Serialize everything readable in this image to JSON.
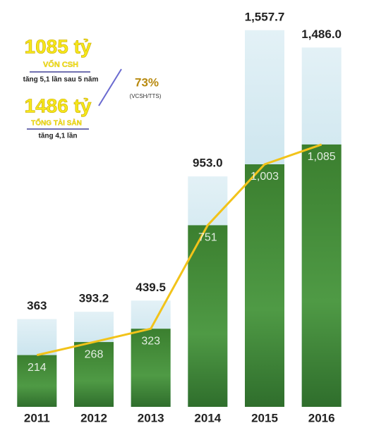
{
  "chart_data": {
    "type": "bar",
    "categories": [
      "2011",
      "2012",
      "2013",
      "2014",
      "2015",
      "2016"
    ],
    "series": [
      {
        "color": "#bcdde9",
        "values": [
          363,
          393.2,
          439.5,
          953.0,
          1557.7,
          1486.0
        ],
        "value_labels": [
          "363",
          "393.2",
          "439.5",
          "953.0",
          "1,557.7",
          "1,486.0"
        ]
      },
      {
        "color": "#3d8a38",
        "line_color": "#f2c31a",
        "values": [
          214,
          268,
          323,
          751,
          1003,
          1085
        ],
        "value_labels": [
          "214",
          "268",
          "323",
          "751",
          "1,003",
          "1,085"
        ]
      }
    ],
    "ylim": [
      0,
      1560
    ],
    "annotations": {
      "equity_value": "1085 tỷ",
      "equity_label": "VỐN CSH",
      "equity_growth": "tăng 5,1 lần sau 5 năm",
      "assets_value": "1486 tỷ",
      "assets_label": "TỔNG TÀI SẢN",
      "assets_growth": "tăng 4,1 lần",
      "ratio": "73%",
      "ratio_label": "(VCSH/TTS)"
    }
  }
}
